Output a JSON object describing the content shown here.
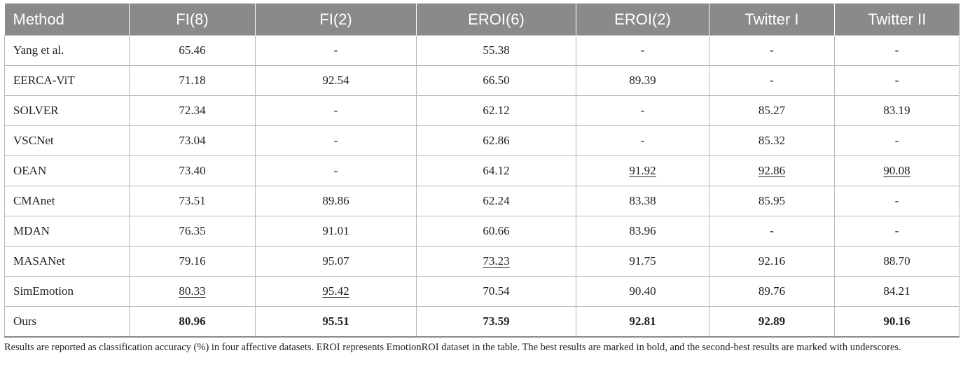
{
  "table": {
    "headers": [
      "Method",
      "FI(8)",
      "FI(2)",
      "EROI(6)",
      "EROI(2)",
      "Twitter I",
      "Twitter II"
    ],
    "rows": [
      [
        "Yang et al.",
        "65.46",
        "-",
        "55.38",
        "-",
        "-",
        "-"
      ],
      [
        "EERCA-ViT",
        "71.18",
        "92.54",
        "66.50",
        "89.39",
        "-",
        "-"
      ],
      [
        "SOLVER",
        "72.34",
        "-",
        "62.12",
        "-",
        "85.27",
        "83.19"
      ],
      [
        "VSCNet",
        "73.04",
        "-",
        "62.86",
        "-",
        "85.32",
        "-"
      ],
      [
        "OEAN",
        "73.40",
        "-",
        "64.12",
        "91.92",
        "92.86",
        "90.08"
      ],
      [
        "CMAnet",
        "73.51",
        "89.86",
        "62.24",
        "83.38",
        "85.95",
        "-"
      ],
      [
        "MDAN",
        "76.35",
        "91.01",
        "60.66",
        "83.96",
        "-",
        "-"
      ],
      [
        "MASANet",
        "79.16",
        "95.07",
        "73.23",
        "91.75",
        "92.16",
        "88.70"
      ],
      [
        "SimEmotion",
        "80.33",
        "95.42",
        "70.54",
        "90.40",
        "89.76",
        "84.21"
      ],
      [
        "Ours",
        "80.96",
        "95.51",
        "73.59",
        "92.81",
        "92.89",
        "90.16"
      ]
    ],
    "bold_row": 9,
    "underlined_cells": [
      [
        4,
        4
      ],
      [
        4,
        5
      ],
      [
        4,
        6
      ],
      [
        7,
        3
      ],
      [
        8,
        1
      ],
      [
        8,
        2
      ]
    ]
  },
  "footnote": "Results are reported as classification accuracy (%) in four affective datasets. EROI represents EmotionROI dataset in the table. The best results are marked in bold, and the second-best results are marked with underscores."
}
